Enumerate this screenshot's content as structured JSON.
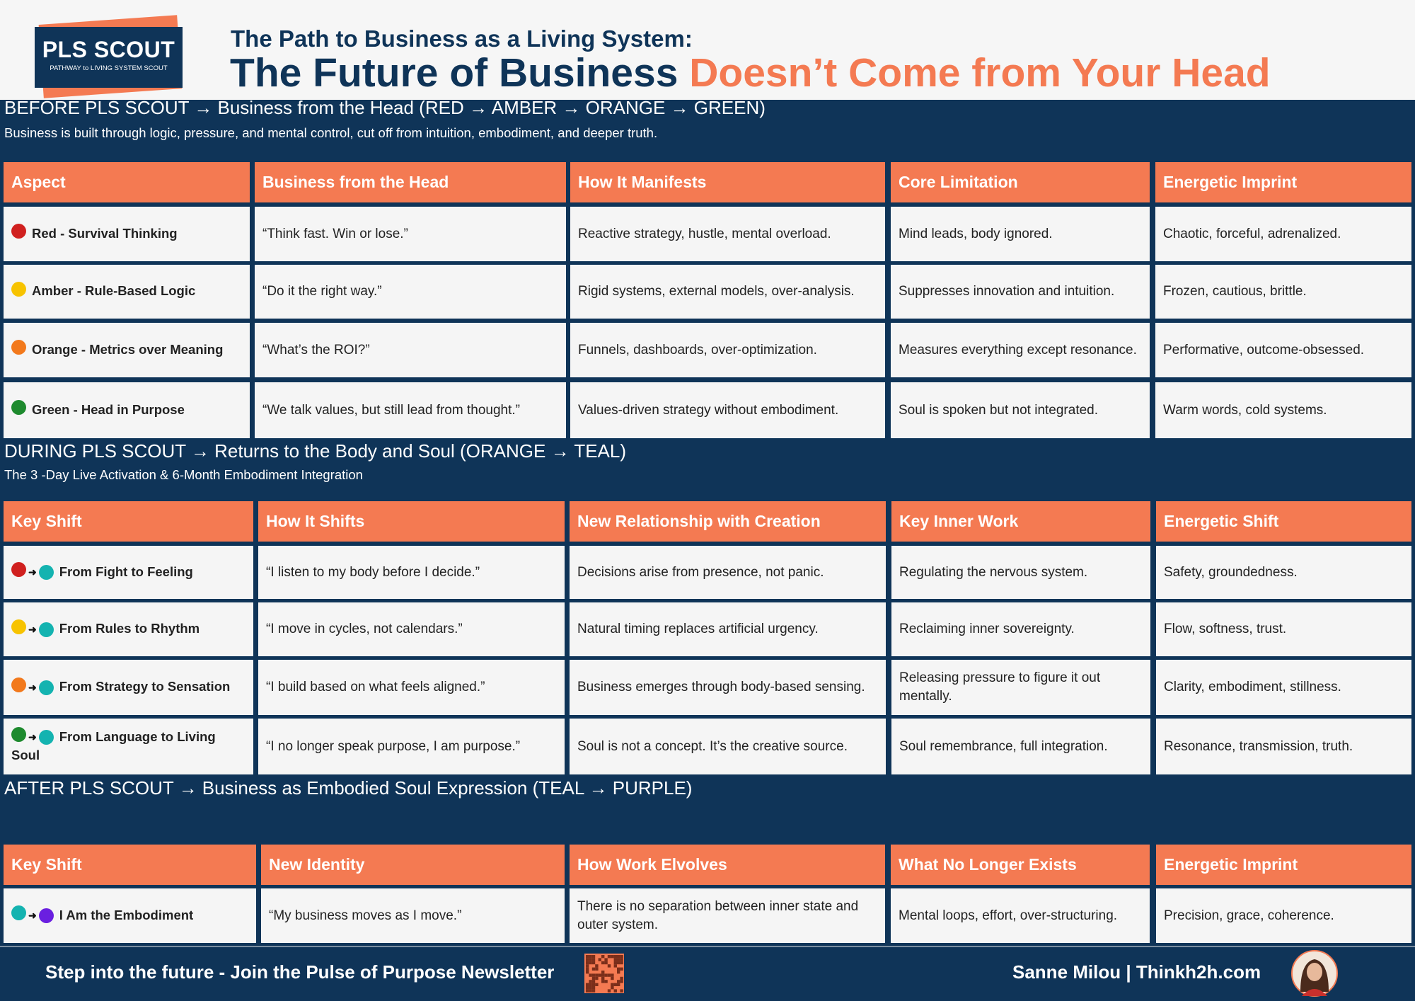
{
  "header": {
    "logo_title": "PLS SCOUT",
    "logo_subtitle": "PATHWAY to LIVING SYSTEM SCOUT",
    "title_line1": "The Path to Business as a Living System:",
    "title_part1": "The Future of Business",
    "title_part2": "Doesn’t Come from Your Head"
  },
  "sections": [
    {
      "heading": "BEFORE PLS SCOUT → Business from the Head (RED → AMBER → ORANGE → GREEN)",
      "subheading": "Business is built through logic, pressure, and mental control, cut off from intuition, embodiment, and deeper truth.",
      "columns": [
        "Aspect",
        "Business from the Head",
        "How It Manifests",
        "Core Limitation",
        "Energetic Imprint"
      ],
      "rows": [
        [
          "Red - Survival Thinking",
          "“Think fast. Win or lose.”",
          "Reactive strategy, hustle, mental overload.",
          "Mind leads, body ignored.",
          "Chaotic, forceful, adrenalized."
        ],
        [
          "Amber - Rule-Based Logic",
          "“Do it the right way.”",
          "Rigid systems, external models, over-analysis.",
          "Suppresses innovation and intuition.",
          "Frozen, cautious, brittle."
        ],
        [
          "Orange - Metrics over Meaning",
          "“What’s the ROI?”",
          "Funnels, dashboards, over-optimization.",
          "Measures everything except resonance.",
          "Performative, outcome-obsessed."
        ],
        [
          "Green - Head in Purpose",
          "“We talk values, but still lead from thought.”",
          "Values-driven strategy without embodiment.",
          "Soul is spoken but not integrated.",
          "Warm words, cold systems."
        ]
      ]
    },
    {
      "heading": "DURING PLS SCOUT → Returns to the Body and Soul  (ORANGE → TEAL)",
      "subheading": "The 3 -Day Live Activation & 6-Month Embodiment Integration",
      "columns": [
        "Key Shift",
        "How It Shifts",
        "New Relationship with Creation",
        "Key Inner Work",
        "Energetic Shift"
      ],
      "rows": [
        [
          "From Fight to Feeling",
          "“I listen to my body before I decide.”",
          "Decisions arise from presence, not panic.",
          "Regulating the nervous system.",
          "Safety, groundedness."
        ],
        [
          "From Rules to Rhythm",
          "“I move in cycles, not calendars.”",
          "Natural timing replaces artificial urgency.",
          "Reclaiming inner sovereignty.",
          "Flow, softness, trust."
        ],
        [
          "From Strategy to Sensation",
          "“I build based on what feels aligned.”",
          "Business emerges through body-based sensing.",
          "Releasing pressure to figure it out mentally.",
          "Clarity, embodiment, stillness."
        ],
        [
          "From Language to Living Soul",
          "“I no longer speak purpose, I am purpose.”",
          "Soul is not a concept. It’s the creative source.",
          "Soul remembrance, full integration.",
          "Resonance, transmission, truth."
        ]
      ]
    },
    {
      "heading": "AFTER PLS SCOUT → Business as Embodied Soul Expression  (TEAL → PURPLE)",
      "columns": [
        "Key Shift",
        "New Identity",
        "How Work Elvolves",
        "What No Longer Exists",
        "Energetic Imprint"
      ],
      "rows": [
        [
          "I Am the Embodiment",
          "“My business moves as I move.”",
          "There is no separation between inner state and outer system.",
          "Mental loops, effort, over-structuring.",
          "Precision, grace, coherence."
        ]
      ]
    }
  ],
  "footer": {
    "cta": "Step into the future -  Join the Pulse of Purpose Newsletter",
    "author": "Sanne Milou | Thinkh2h.com"
  }
}
